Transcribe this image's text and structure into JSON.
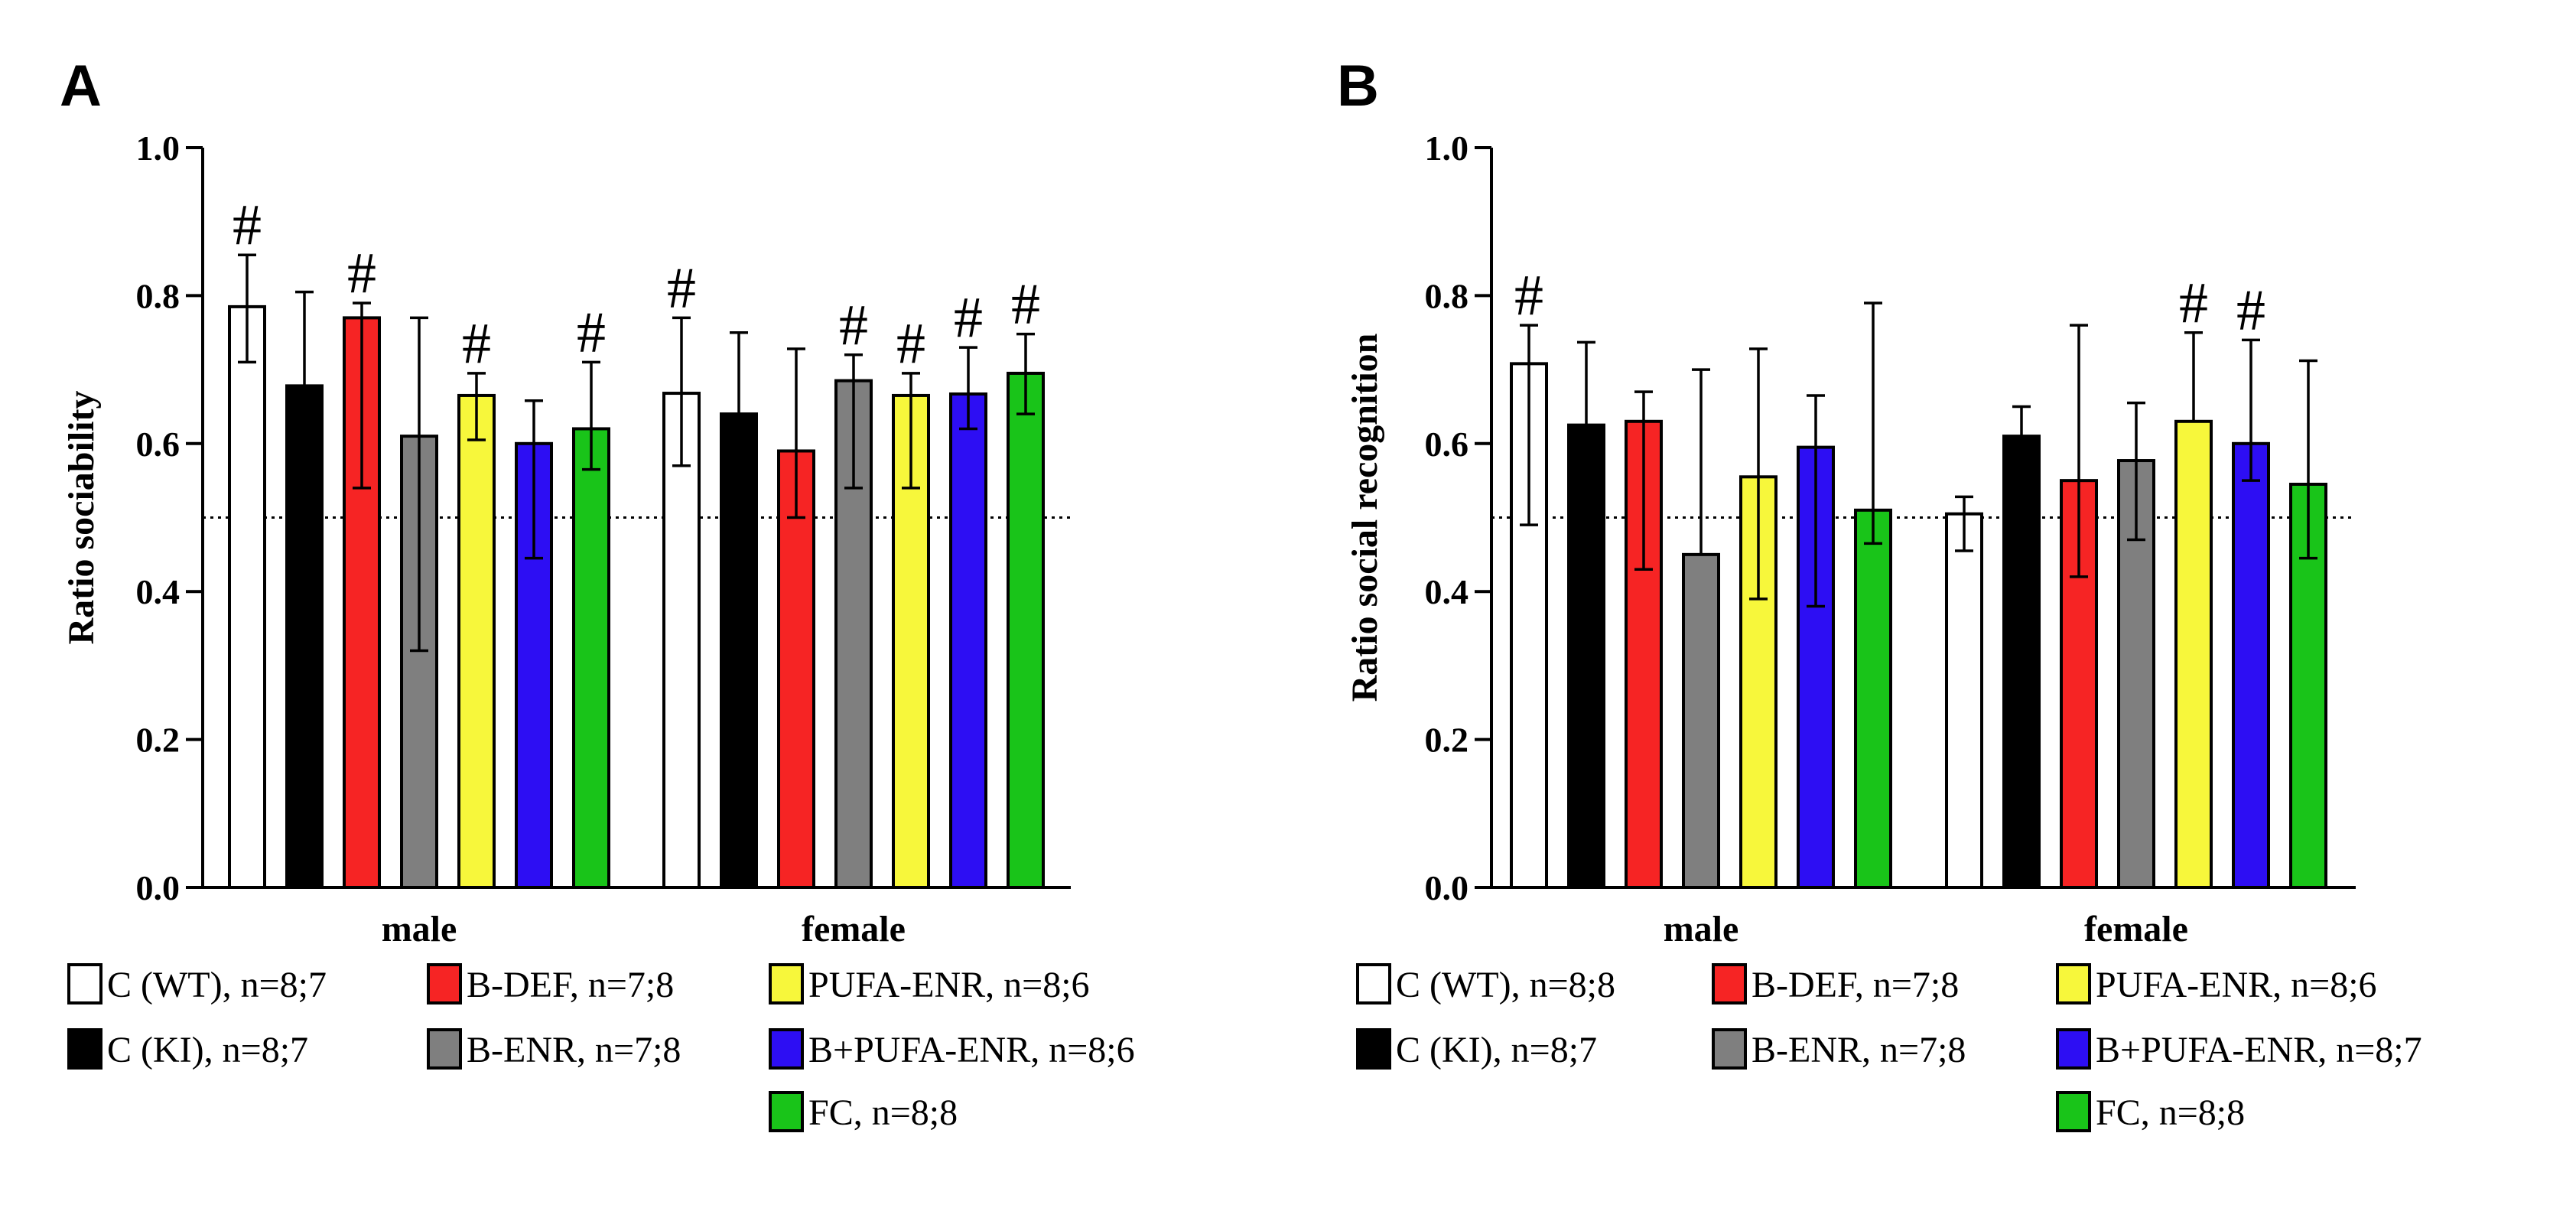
{
  "colors": {
    "C (WT)": "#ffffff",
    "C (KI)": "#000000",
    "B-DEF": "#f62424",
    "B-ENR": "#7f7f7f",
    "PUFA-ENR": "#f7f73b",
    "B+PUFA-ENR": "#2d0ef3",
    "FC": "#19c419"
  },
  "significance_marker": "#",
  "chart_data": [
    {
      "panel": "A",
      "type": "bar",
      "title": "",
      "xlabel": "",
      "ylabel": "Ratio sociability",
      "ylim": [
        0,
        1.0
      ],
      "yticks": [
        "0.0",
        "0.2",
        "0.4",
        "0.6",
        "0.8",
        "1.0"
      ],
      "reference_line": 0.5,
      "categories": [
        "male",
        "female"
      ],
      "series": [
        {
          "name": "C (WT)",
          "values": [
            0.785,
            0.668
          ],
          "err_low": [
            0.71,
            0.57
          ],
          "err_high": [
            0.855,
            0.77
          ],
          "significant": [
            true,
            true
          ]
        },
        {
          "name": "C (KI)",
          "values": [
            0.678,
            0.64
          ],
          "err_low": [
            0.678,
            0.64
          ],
          "err_high": [
            0.805,
            0.75
          ],
          "significant": [
            false,
            false
          ]
        },
        {
          "name": "B-DEF",
          "values": [
            0.77,
            0.59
          ],
          "err_low": [
            0.54,
            0.5
          ],
          "err_high": [
            0.79,
            0.728
          ],
          "significant": [
            true,
            false
          ]
        },
        {
          "name": "B-ENR",
          "values": [
            0.61,
            0.685
          ],
          "err_low": [
            0.32,
            0.54
          ],
          "err_high": [
            0.77,
            0.72
          ],
          "significant": [
            false,
            true
          ]
        },
        {
          "name": "PUFA-ENR",
          "values": [
            0.665,
            0.665
          ],
          "err_low": [
            0.605,
            0.54
          ],
          "err_high": [
            0.695,
            0.695
          ],
          "significant": [
            true,
            true
          ]
        },
        {
          "name": "B+PUFA-ENR",
          "values": [
            0.6,
            0.667
          ],
          "err_low": [
            0.445,
            0.62
          ],
          "err_high": [
            0.658,
            0.73
          ],
          "significant": [
            false,
            true
          ]
        },
        {
          "name": "FC",
          "values": [
            0.62,
            0.695
          ],
          "err_low": [
            0.565,
            0.64
          ],
          "err_high": [
            0.71,
            0.748
          ],
          "significant": [
            true,
            true
          ]
        }
      ],
      "legend": [
        "C (WT), n=8;7",
        "C (KI), n=8;7",
        "B-DEF, n=7;8",
        "B-ENR, n=7;8",
        "PUFA-ENR, n=8;6",
        "B+PUFA-ENR, n=8;6",
        "FC, n=8;8"
      ]
    },
    {
      "panel": "B",
      "type": "bar",
      "title": "",
      "xlabel": "",
      "ylabel": "Ratio social recognition",
      "ylim": [
        0,
        1.0
      ],
      "yticks": [
        "0.0",
        "0.2",
        "0.4",
        "0.6",
        "0.8",
        "1.0"
      ],
      "reference_line": 0.5,
      "categories": [
        "male",
        "female"
      ],
      "series": [
        {
          "name": "C (WT)",
          "values": [
            0.708,
            0.505
          ],
          "err_low": [
            0.49,
            0.455
          ],
          "err_high": [
            0.76,
            0.528
          ],
          "significant": [
            true,
            false
          ]
        },
        {
          "name": "C (KI)",
          "values": [
            0.625,
            0.61
          ],
          "err_low": [
            0.625,
            0.61
          ],
          "err_high": [
            0.737,
            0.65
          ],
          "significant": [
            false,
            false
          ]
        },
        {
          "name": "B-DEF",
          "values": [
            0.63,
            0.55
          ],
          "err_low": [
            0.43,
            0.42
          ],
          "err_high": [
            0.67,
            0.76
          ],
          "significant": [
            false,
            false
          ]
        },
        {
          "name": "B-ENR",
          "values": [
            0.45,
            0.577
          ],
          "err_low": [
            0.45,
            0.47
          ],
          "err_high": [
            0.7,
            0.655
          ],
          "significant": [
            false,
            false
          ]
        },
        {
          "name": "PUFA-ENR",
          "values": [
            0.555,
            0.63
          ],
          "err_low": [
            0.39,
            0.63
          ],
          "err_high": [
            0.728,
            0.75
          ],
          "significant": [
            false,
            true
          ]
        },
        {
          "name": "B+PUFA-ENR",
          "values": [
            0.595,
            0.6
          ],
          "err_low": [
            0.38,
            0.55
          ],
          "err_high": [
            0.665,
            0.74
          ],
          "significant": [
            false,
            true
          ]
        },
        {
          "name": "FC",
          "values": [
            0.51,
            0.545
          ],
          "err_low": [
            0.465,
            0.445
          ],
          "err_high": [
            0.79,
            0.712
          ],
          "significant": [
            false,
            false
          ]
        }
      ],
      "legend": [
        "C (WT), n=8;8",
        "C (KI), n=8;7",
        "B-DEF, n=7;8",
        "B-ENR, n=7;8",
        "PUFA-ENR, n=8;6",
        "B+PUFA-ENR, n=8;7",
        "FC, n=8;8"
      ]
    }
  ]
}
